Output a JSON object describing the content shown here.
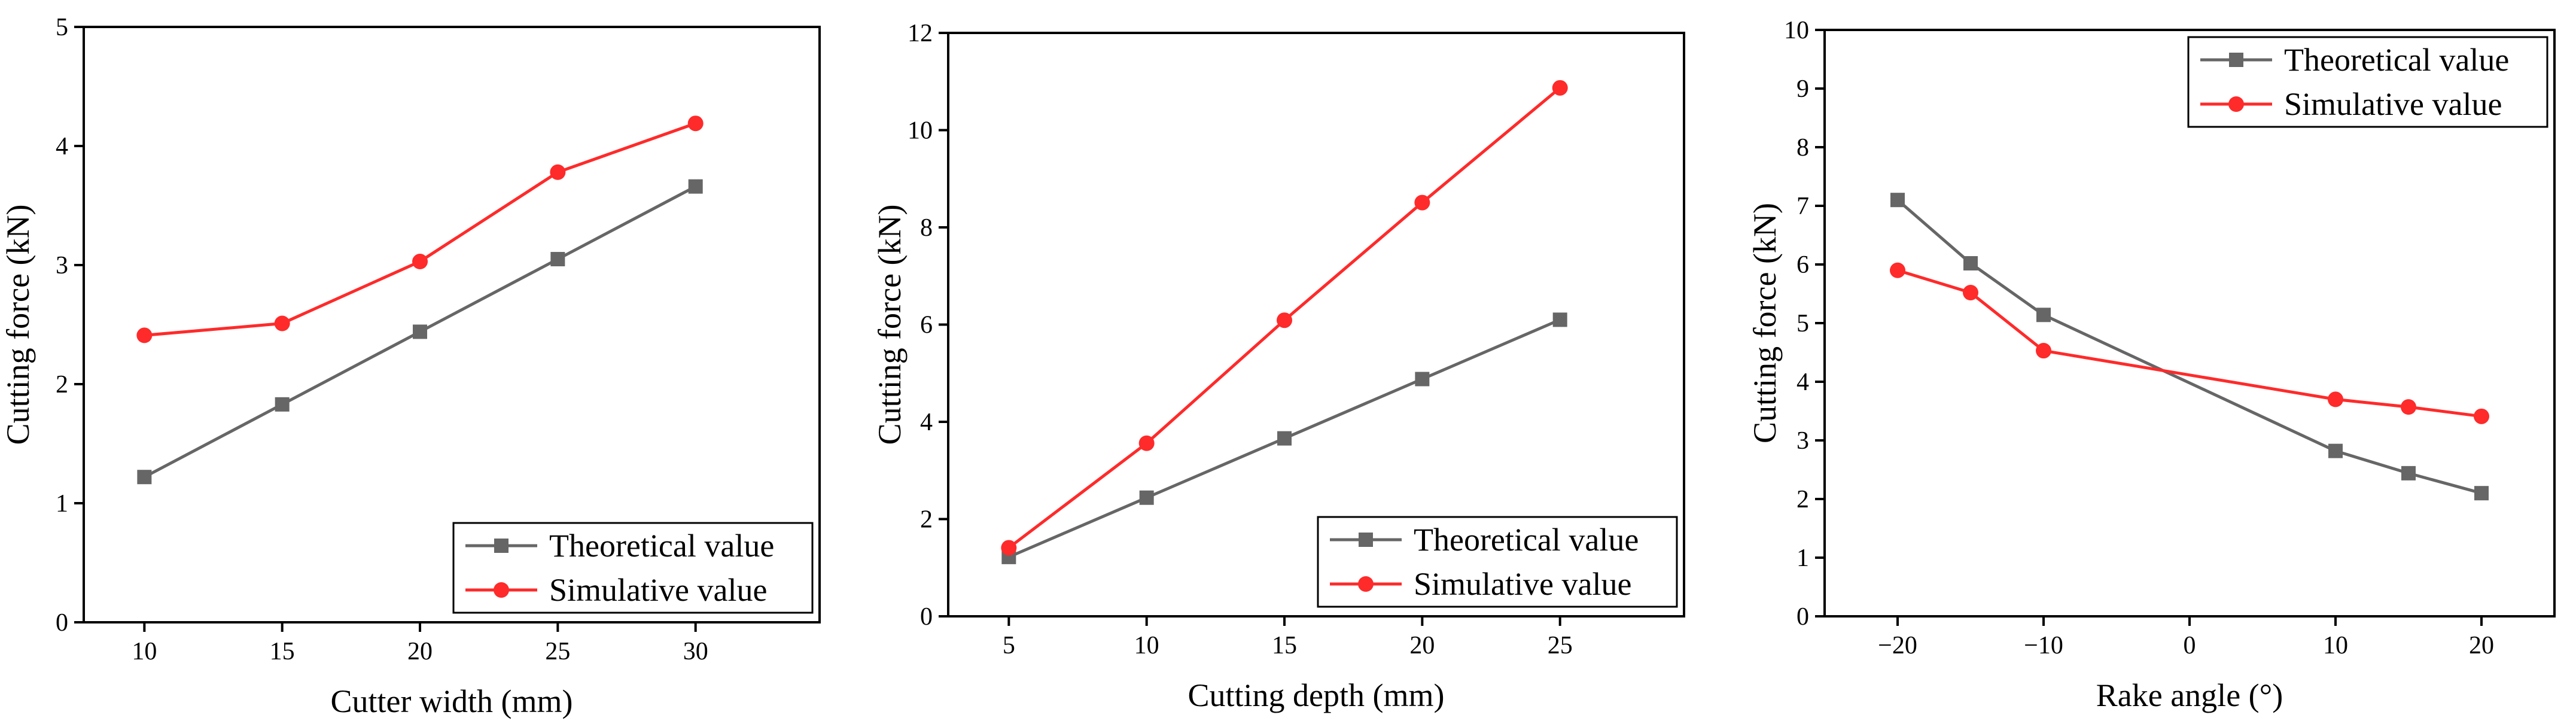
{
  "colors": {
    "theoretical": "#666666",
    "simulative": "#ff2a2a"
  },
  "chart_data": [
    {
      "type": "line",
      "xlabel": "Cutter width (mm)",
      "ylabel": "Cutting force (kN)",
      "xlim": [
        7.8,
        34.5
      ],
      "ylim": [
        0,
        5
      ],
      "xticks": [
        10,
        15,
        20,
        25,
        30
      ],
      "yticks": [
        0,
        1,
        2,
        3,
        4,
        5
      ],
      "x": [
        10,
        15,
        20,
        25,
        30
      ],
      "legend_position": "bottom-right",
      "series": [
        {
          "name": "Theoretical value",
          "marker": "square",
          "color": "#666666",
          "values": [
            1.22,
            1.83,
            2.44,
            3.05,
            3.66
          ]
        },
        {
          "name": "Simulative value",
          "marker": "circle",
          "color": "#ff2a2a",
          "values": [
            2.41,
            2.51,
            3.03,
            3.78,
            4.19
          ]
        }
      ]
    },
    {
      "type": "line",
      "xlabel": "Cutting depth (mm)",
      "ylabel": "Cutting force (kN)",
      "xlim": [
        2.8,
        29.5
      ],
      "ylim": [
        0,
        12
      ],
      "xticks": [
        5,
        10,
        15,
        20,
        25
      ],
      "yticks": [
        0,
        2,
        4,
        6,
        8,
        10,
        12
      ],
      "x": [
        5,
        10,
        15,
        20,
        25
      ],
      "legend_position": "bottom-right",
      "series": [
        {
          "name": "Theoretical value",
          "marker": "square",
          "color": "#666666",
          "values": [
            1.22,
            2.44,
            3.66,
            4.88,
            6.1
          ]
        },
        {
          "name": "Simulative value",
          "marker": "circle",
          "color": "#ff2a2a",
          "values": [
            1.41,
            3.56,
            6.09,
            8.51,
            10.87
          ]
        }
      ]
    },
    {
      "type": "line",
      "xlabel": "Rake angle (°)",
      "ylabel": "Cutting force (kN)",
      "xlim": [
        -25,
        25
      ],
      "ylim": [
        0,
        10
      ],
      "xticks": [
        -20,
        -10,
        0,
        10,
        20
      ],
      "xtick_labels": [
        "−20",
        "−10",
        "0",
        "10",
        "20"
      ],
      "yticks": [
        0,
        1,
        2,
        3,
        4,
        5,
        6,
        7,
        8,
        9,
        10
      ],
      "x": [
        -20,
        -15,
        -10,
        10,
        15,
        20
      ],
      "legend_position": "top-right",
      "series": [
        {
          "name": "Theoretical value",
          "marker": "square",
          "color": "#666666",
          "values": [
            7.1,
            6.02,
            5.14,
            2.82,
            2.44,
            2.1
          ]
        },
        {
          "name": "Simulative value",
          "marker": "circle",
          "color": "#ff2a2a",
          "values": [
            5.9,
            5.52,
            4.53,
            3.7,
            3.57,
            3.41
          ]
        }
      ]
    }
  ]
}
